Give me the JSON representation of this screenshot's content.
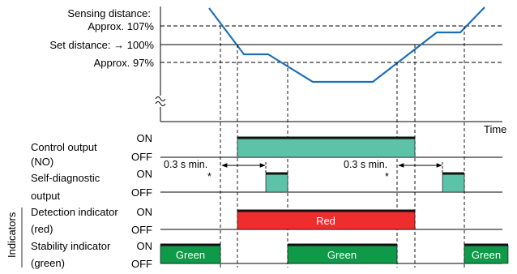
{
  "colors": {
    "sensing_curve": "#1f6fb3",
    "control_fill": "#5cc2a8",
    "red_fill": "#ee2d2d",
    "green_fill": "#0e9a48",
    "bar_top": "#111111"
  },
  "distance_axis": {
    "sensing_label_line1": "Sensing distance:",
    "sensing_label_line2": "Approx. 107%",
    "set_label": "Set distance: → 100%",
    "lower_label": "Approx. 97%",
    "time_label": "Time"
  },
  "signals": {
    "control": {
      "label_line1": "Control output",
      "label_line2": "(NO)",
      "on": "ON",
      "off": "OFF"
    },
    "selfdiag": {
      "label_line1": "Self-diagnostic",
      "label_line2": "output",
      "on": "ON",
      "off": "OFF"
    },
    "detection": {
      "label_line1": "Detection indicator",
      "label_line2": "(red)",
      "on": "ON",
      "off": "OFF",
      "bar_text": "Red"
    },
    "stability": {
      "label_line1": "Stability indicator",
      "label_line2": "(green)",
      "on": "ON",
      "off": "OFF",
      "bar_text": "Green"
    }
  },
  "indicators_group_label": "Indicators",
  "delay_annotations": [
    {
      "text": "0.3 s min.",
      "star": "*"
    },
    {
      "text": "0.3 s min.",
      "star": "*"
    }
  ]
}
